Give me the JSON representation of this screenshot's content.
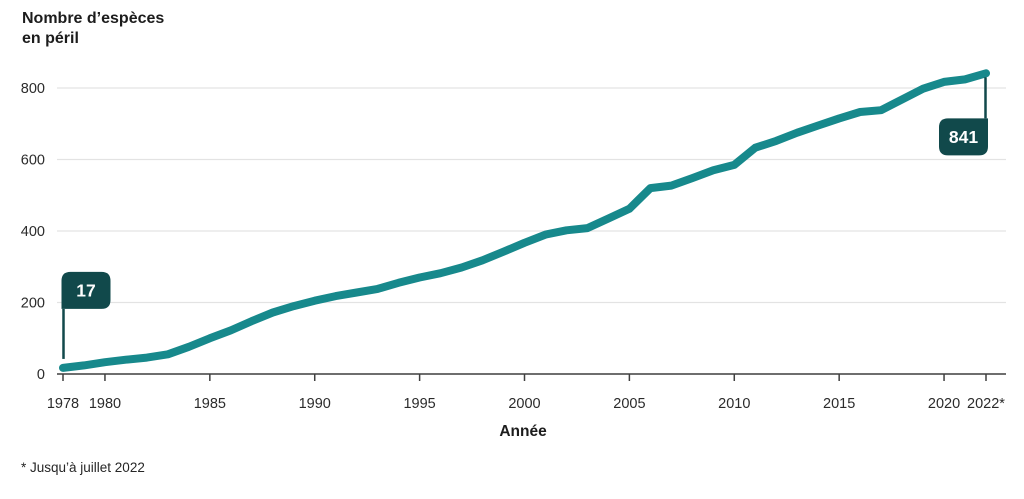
{
  "header": {
    "title_line1": "Nombre d’espèces",
    "title_line2": "en péril"
  },
  "footnote": "* Jusqu’à juillet 2022",
  "chart_data": {
    "type": "line",
    "title": "Nombre d’espèces en péril",
    "series_name": "Nombre d'espèces en péril",
    "xlabel": "Année",
    "ylabel": "Nombre d’espèces en péril",
    "xlim": [
      1978,
      2022
    ],
    "ylim": [
      0,
      850
    ],
    "grid": "horizontal",
    "yticks": [
      0,
      200,
      400,
      600,
      800
    ],
    "xticks": [
      {
        "year": 1978,
        "label": "1978"
      },
      {
        "year": 1980,
        "label": "1980"
      },
      {
        "year": 1985,
        "label": "1985"
      },
      {
        "year": 1990,
        "label": "1990"
      },
      {
        "year": 1995,
        "label": "1995"
      },
      {
        "year": 2000,
        "label": "2000"
      },
      {
        "year": 2005,
        "label": "2005"
      },
      {
        "year": 2010,
        "label": "2010"
      },
      {
        "year": 2015,
        "label": "2015"
      },
      {
        "year": 2020,
        "label": "2020"
      },
      {
        "year": 2022,
        "label": "2022*"
      }
    ],
    "x": [
      1978,
      1979,
      1980,
      1981,
      1982,
      1983,
      1984,
      1985,
      1986,
      1987,
      1988,
      1989,
      1990,
      1991,
      1992,
      1993,
      1994,
      1995,
      1996,
      1997,
      1998,
      1999,
      2000,
      2001,
      2002,
      2003,
      2004,
      2005,
      2006,
      2007,
      2008,
      2009,
      2010,
      2011,
      2012,
      2013,
      2014,
      2015,
      2016,
      2017,
      2018,
      2019,
      2020,
      2021,
      2022
    ],
    "values": [
      17,
      24,
      33,
      40,
      46,
      55,
      76,
      100,
      122,
      148,
      172,
      190,
      205,
      218,
      228,
      238,
      255,
      270,
      282,
      298,
      318,
      342,
      367,
      390,
      402,
      408,
      435,
      462,
      520,
      527,
      548,
      570,
      585,
      633,
      652,
      675,
      695,
      715,
      733,
      738,
      768,
      798,
      817,
      824,
      841
    ],
    "annotations": [
      {
        "year": 1978,
        "value": 17,
        "label": "17",
        "position": "above"
      },
      {
        "year": 2022,
        "value": 841,
        "label": "841",
        "position": "below"
      }
    ],
    "colors": {
      "line": "#17898c",
      "callout_bg": "#11494b",
      "callout_text": "#ffffff",
      "grid": "#e3e3e3",
      "axis": "#3f3f3f",
      "tick_text": "#2b2b2b"
    }
  }
}
